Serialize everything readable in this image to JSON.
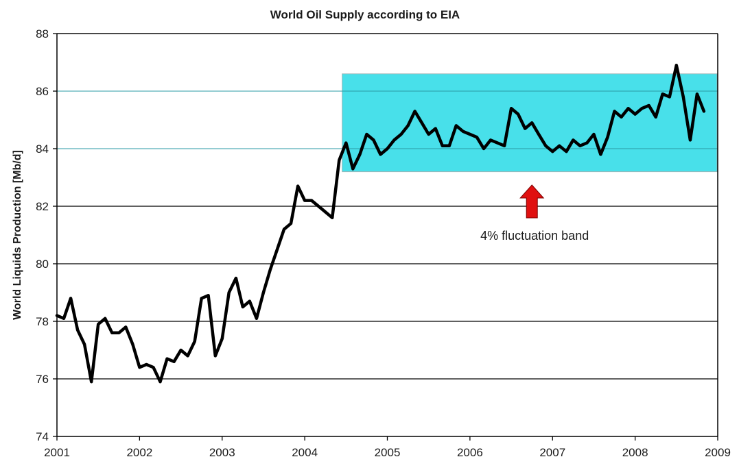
{
  "chart_data": {
    "type": "line",
    "title": "World Oil Supply according to EIA",
    "xlabel": "",
    "ylabel": "World Liquids Production [Mb/d]",
    "xlim": [
      2001,
      2009
    ],
    "ylim": [
      74,
      88
    ],
    "x_ticks": [
      "2001",
      "2002",
      "2003",
      "2004",
      "2005",
      "2006",
      "2007",
      "2008",
      "2009"
    ],
    "y_ticks": [
      "74",
      "76",
      "78",
      "80",
      "82",
      "84",
      "86",
      "88"
    ],
    "grid": "horizontal",
    "legend": "none",
    "line_color": "#000000",
    "band": {
      "x_start": 2004.42,
      "x_end": 2009.0,
      "y_low": 83.2,
      "y_high": 86.6,
      "color": "#48e0ea",
      "label": "4% fluctuation band"
    },
    "arrow": {
      "x": 2006.75,
      "color": "#e01010"
    },
    "series": [
      {
        "x": [
          2001.0,
          2001.083,
          2001.167,
          2001.25,
          2001.333,
          2001.417,
          2001.5,
          2001.583,
          2001.667,
          2001.75,
          2001.833,
          2001.917,
          2002.0,
          2002.083,
          2002.167,
          2002.25,
          2002.333,
          2002.417,
          2002.5,
          2002.583,
          2002.667,
          2002.75,
          2002.833,
          2002.917,
          2003.0,
          2003.083,
          2003.167,
          2003.25,
          2003.333,
          2003.417,
          2003.5,
          2003.583,
          2003.667,
          2003.75,
          2003.833,
          2003.917,
          2004.0,
          2004.083,
          2004.167,
          2004.25,
          2004.333,
          2004.417,
          2004.5,
          2004.583,
          2004.667,
          2004.75,
          2004.833,
          2004.917,
          2005.0,
          2005.083,
          2005.167,
          2005.25,
          2005.333,
          2005.417,
          2005.5,
          2005.583,
          2005.667,
          2005.75,
          2005.833,
          2005.917,
          2006.0,
          2006.083,
          2006.167,
          2006.25,
          2006.333,
          2006.417,
          2006.5,
          2006.583,
          2006.667,
          2006.75,
          2006.833,
          2006.917,
          2007.0,
          2007.083,
          2007.167,
          2007.25,
          2007.333,
          2007.417,
          2007.5,
          2007.583,
          2007.667,
          2007.75,
          2007.833,
          2007.917,
          2008.0,
          2008.083,
          2008.167,
          2008.25,
          2008.333,
          2008.417,
          2008.5,
          2008.583,
          2008.667,
          2008.75,
          2008.833
        ],
        "y": [
          78.2,
          78.1,
          78.8,
          77.7,
          77.2,
          75.9,
          77.9,
          78.1,
          77.6,
          77.6,
          77.8,
          77.2,
          76.4,
          76.5,
          76.4,
          75.9,
          76.7,
          76.6,
          77.0,
          76.8,
          77.3,
          78.8,
          78.9,
          76.8,
          77.4,
          79.0,
          79.5,
          78.5,
          78.7,
          78.1,
          79.0,
          79.8,
          80.5,
          81.2,
          81.4,
          82.7,
          82.2,
          82.2,
          82.0,
          81.8,
          81.6,
          83.6,
          84.2,
          83.3,
          83.8,
          84.5,
          84.3,
          83.8,
          84.0,
          84.3,
          84.5,
          84.8,
          85.3,
          84.9,
          84.5,
          84.7,
          84.1,
          84.1,
          84.8,
          84.6,
          84.5,
          84.4,
          84.0,
          84.3,
          84.2,
          84.1,
          85.4,
          85.2,
          84.7,
          84.9,
          84.5,
          84.1,
          83.9,
          84.1,
          83.9,
          84.3,
          84.1,
          84.2,
          84.5,
          83.8,
          84.4,
          85.3,
          85.1,
          85.4,
          85.2,
          85.4,
          85.5,
          85.1,
          85.9,
          85.8,
          86.9,
          85.8,
          84.3,
          85.9,
          85.3
        ]
      }
    ]
  }
}
